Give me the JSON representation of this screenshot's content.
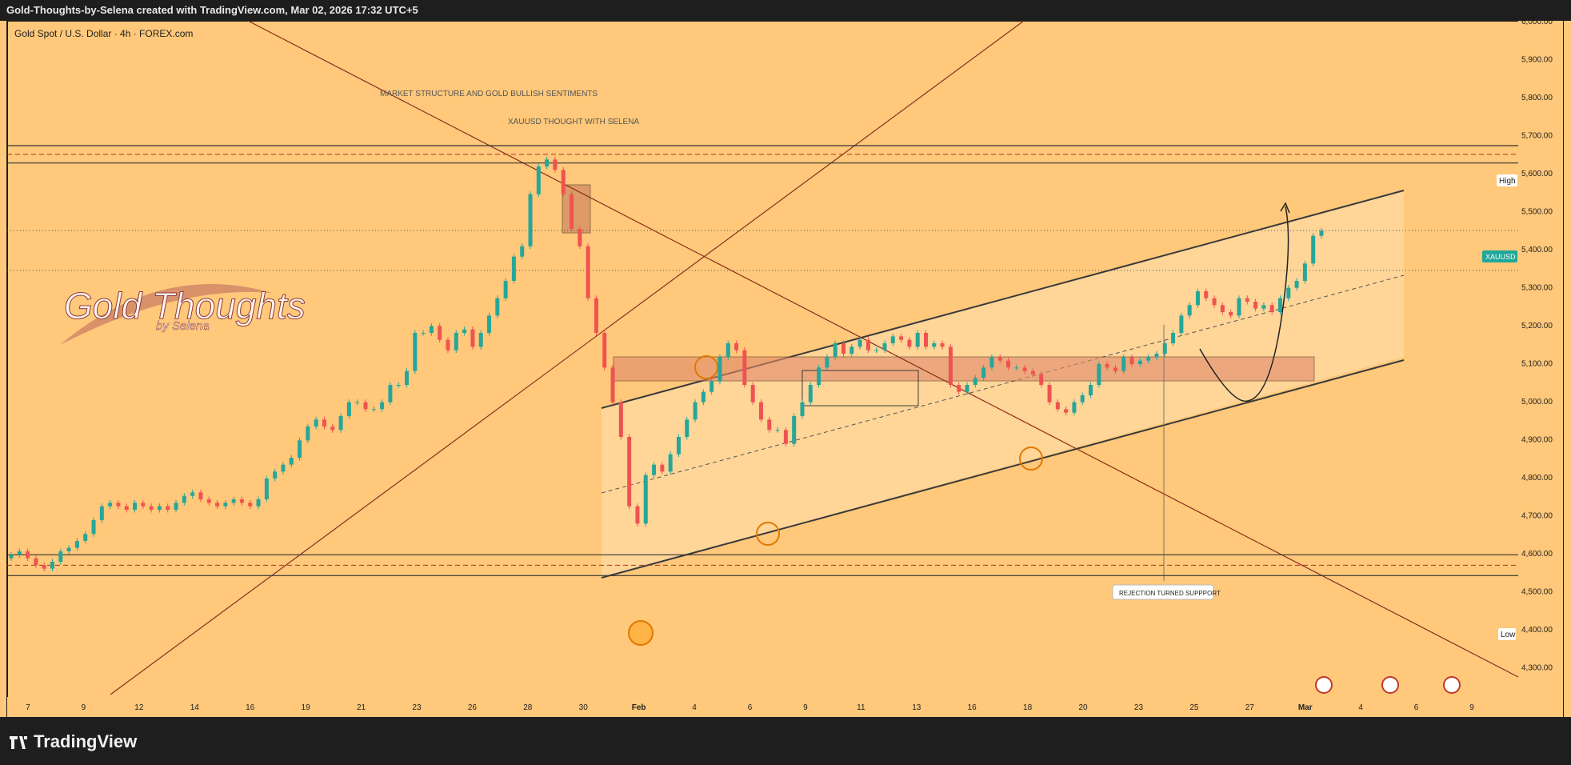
{
  "header": {
    "title": "Gold-Thoughts-by-Selena created with TradingView.com, Mar 02, 2026 17:32 UTC+5"
  },
  "chart_data": {
    "type": "candlestick",
    "symbol_line": "Gold Spot / U.S. Dollar · 4h · FOREX.com",
    "ylim": [
      4200,
      6000
    ],
    "y_ticks": [
      "6,000.00",
      "5,900.00",
      "5,800.00",
      "5,700.00",
      "5,600.00",
      "5,500.00",
      "5,400.00",
      "5,300.00",
      "5,200.00",
      "5,100.00",
      "5,000.00",
      "4,900.00",
      "4,800.00",
      "4,700.00",
      "4,600.00",
      "4,500.00",
      "4,400.00",
      "4,300.00"
    ],
    "x_ticks": [
      "7",
      "9",
      "12",
      "14",
      "16",
      "19",
      "21",
      "23",
      "26",
      "28",
      "30",
      "Feb",
      "4",
      "6",
      "9",
      "11",
      "13",
      "16",
      "18",
      "20",
      "23",
      "25",
      "27",
      "Mar",
      "4",
      "6",
      "9"
    ],
    "annotations": {
      "title": "MARKET STRUCTURE AND GOLD BULLISH SENTIMENTS",
      "subtitle": "XAUUSD THOUGHT WITH SELENA",
      "callout": "REJECTION TURNED SUPPPORT",
      "watermark_main": "Gold Thoughts",
      "watermark_sub": "by Selena"
    },
    "price_labels": {
      "high": "High",
      "low": "Low",
      "symbol": "XAUUSD"
    },
    "levels": {
      "resistance_top": 5640,
      "resistance_mid": 5615,
      "resistance_bottom": 5590,
      "support_top": 4460,
      "support_mid": 4430,
      "support_bottom": 4400,
      "current_price": 5395,
      "dotted_level": 5280
    },
    "candles_close": [
      4460,
      4470,
      4450,
      4430,
      4420,
      4440,
      4470,
      4480,
      4500,
      4520,
      4560,
      4600,
      4610,
      4600,
      4590,
      4610,
      4600,
      4590,
      4600,
      4590,
      4610,
      4630,
      4640,
      4620,
      4610,
      4600,
      4610,
      4620,
      4610,
      4600,
      4620,
      4680,
      4700,
      4720,
      4740,
      4790,
      4830,
      4850,
      4830,
      4820,
      4860,
      4900,
      4900,
      4880,
      4880,
      4900,
      4950,
      4950,
      4990,
      5100,
      5100,
      5120,
      5080,
      5050,
      5100,
      5110,
      5060,
      5100,
      5150,
      5200,
      5250,
      5320,
      5350,
      5500,
      5580,
      5600,
      5570,
      5500,
      5400,
      5350,
      5200,
      5100,
      5000,
      4900,
      4800,
      4600,
      4550,
      4690,
      4720,
      4700,
      4750,
      4800,
      4850,
      4900,
      4930,
      4960,
      5030,
      5070,
      5050,
      4950,
      4900,
      4850,
      4820,
      4820,
      4780,
      4860,
      4900,
      4950,
      5000,
      5030,
      5070,
      5040,
      5060,
      5080,
      5050,
      5050,
      5070,
      5090,
      5080,
      5060,
      5100,
      5060,
      5070,
      5060,
      4950,
      4930,
      4950,
      4970,
      5000,
      5030,
      5020,
      5000,
      5000,
      4990,
      4980,
      4950,
      4900,
      4880,
      4870,
      4900,
      4920,
      4950,
      5010,
      5000,
      4990,
      5030,
      5010,
      5020,
      5030,
      5040,
      5070,
      5100,
      5150,
      5180,
      5220,
      5200,
      5180,
      5160,
      5150,
      5200,
      5190,
      5170,
      5180,
      5160,
      5200,
      5230,
      5250,
      5300,
      5380,
      5395
    ]
  }
}
